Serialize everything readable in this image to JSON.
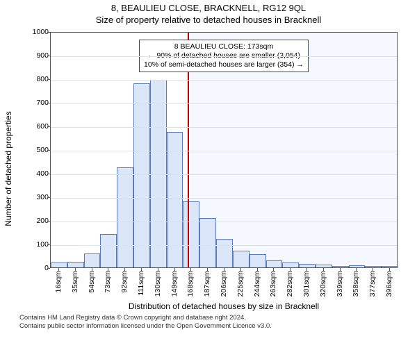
{
  "titles": {
    "main": "8, BEAULIEU CLOSE, BRACKNELL, RG12 9QL",
    "sub": "Size of property relative to detached houses in Bracknell"
  },
  "chart": {
    "type": "histogram",
    "ylabel": "Number of detached properties",
    "xlabel": "Distribution of detached houses by size in Bracknell",
    "ylim": [
      0,
      1000
    ],
    "ytick_step": 100,
    "background_color": "#ffffff",
    "grid_color": "#e0e0e0",
    "axis_color": "#555555",
    "bar_fill": "#dbe6f8",
    "bar_stroke": "#5a7bbf",
    "shaded_fill": "#f5f8fe",
    "marker_color": "#c00000",
    "marker_x": 173,
    "annot": {
      "l1": "8 BEAULIEU CLOSE: 173sqm",
      "l2": "← 90% of detached houses are smaller (3,054)",
      "l3": "10% of semi-detached houses are larger (354) →"
    },
    "x_start": 16,
    "bin_width": 19,
    "n_bins": 21,
    "categories": [
      "16sqm",
      "35sqm",
      "54sqm",
      "73sqm",
      "92sqm",
      "111sqm",
      "130sqm",
      "149sqm",
      "168sqm",
      "187sqm",
      "206sqm",
      "225sqm",
      "244sqm",
      "263sqm",
      "282sqm",
      "301sqm",
      "320sqm",
      "339sqm",
      "358sqm",
      "377sqm",
      "396sqm"
    ],
    "values": [
      20,
      25,
      60,
      140,
      425,
      780,
      795,
      575,
      280,
      210,
      120,
      70,
      55,
      30,
      20,
      15,
      12,
      5,
      10,
      5,
      5
    ],
    "label_fontsize": 12,
    "tick_fontsize": 10.5,
    "title_fontsize": 13
  },
  "footer": {
    "l1": "Contains HM Land Registry data © Crown copyright and database right 2024.",
    "l2": "Contains public sector information licensed under the Open Government Licence v3.0."
  }
}
